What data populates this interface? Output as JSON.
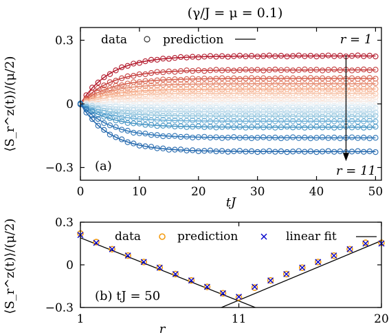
{
  "figure": {
    "title": "(γ/J = μ = 0.1)"
  },
  "chart_data": [
    {
      "type": "scatter",
      "panel_label": "(a)",
      "xlabel": "tJ",
      "ylabel": "⟨S_r^z(t)⟩/(μ/2)",
      "xlim": [
        0,
        51
      ],
      "ylim": [
        -0.36,
        0.36
      ],
      "xticks": [
        "0",
        "10",
        "20",
        "30",
        "40",
        "50"
      ],
      "xtick_values": [
        0,
        10,
        20,
        30,
        40,
        50
      ],
      "yticks": [
        "0.3",
        "0",
        "−0.3"
      ],
      "ytick_values": [
        0.3,
        0,
        -0.3
      ],
      "legend": {
        "data": "data",
        "prediction": "prediction",
        "placement": "top"
      },
      "annotation_top": "r = 1",
      "annotation_bottom": "r = 11",
      "arrow_x": 45,
      "arrow_y": [
        0.23,
        -0.27
      ],
      "time_constant": 5,
      "x_markers": [
        0,
        1,
        2,
        3,
        4,
        5,
        6,
        7,
        8,
        9,
        10,
        11,
        12,
        13,
        14,
        15,
        16,
        17,
        18,
        19,
        20,
        21,
        22,
        23,
        24,
        25,
        26,
        27,
        28,
        29,
        30,
        31,
        32,
        33,
        34,
        35,
        36,
        37,
        38,
        39,
        40,
        41,
        42,
        43,
        44,
        45,
        46,
        47,
        48,
        49,
        50
      ],
      "series": [
        {
          "final": 0.226,
          "color": "#b2182b"
        },
        {
          "final": 0.16,
          "color": "#c43c3c"
        },
        {
          "final": 0.12,
          "color": "#d6604d"
        },
        {
          "final": 0.095,
          "color": "#e58a6f"
        },
        {
          "final": 0.07,
          "color": "#f4a582"
        },
        {
          "final": 0.05,
          "color": "#f7c3a8"
        },
        {
          "final": 0.03,
          "color": "#fbdccc"
        },
        {
          "final": 0.012,
          "color": "#f5ebe6"
        },
        {
          "final": -0.005,
          "color": "#e8f1f7"
        },
        {
          "final": -0.02,
          "color": "#d1e5f0"
        },
        {
          "final": -0.038,
          "color": "#b8d8ea"
        },
        {
          "final": -0.058,
          "color": "#92c5de"
        },
        {
          "final": -0.082,
          "color": "#6aaed6"
        },
        {
          "final": -0.11,
          "color": "#4393c3"
        },
        {
          "final": -0.16,
          "color": "#2e75b6"
        },
        {
          "final": -0.225,
          "color": "#2166ac"
        }
      ]
    },
    {
      "type": "scatter",
      "panel_label": "(b) tJ = 50",
      "xlabel": "r",
      "ylabel": "⟨S_r^z(t)⟩/(μ/2)",
      "xlim": [
        1,
        20
      ],
      "ylim": [
        -0.3,
        0.3
      ],
      "xticks": [
        "1",
        "11",
        "20"
      ],
      "xtick_values": [
        1,
        11,
        20
      ],
      "yticks": [
        "0.3",
        "0",
        "−0.3"
      ],
      "ytick_values": [
        0.3,
        0,
        -0.3
      ],
      "legend": {
        "data": "data",
        "prediction": "prediction",
        "fit": "linear fit",
        "placement": "top"
      },
      "r": [
        1,
        2,
        3,
        4,
        5,
        6,
        7,
        8,
        9,
        10,
        11,
        12,
        13,
        14,
        15,
        16,
        17,
        18,
        19,
        20
      ],
      "data": [
        0.22,
        0.16,
        0.11,
        0.065,
        0.02,
        -0.02,
        -0.065,
        -0.11,
        -0.155,
        -0.2,
        -0.23,
        -0.16,
        -0.11,
        -0.065,
        -0.02,
        0.02,
        0.065,
        0.11,
        0.155,
        0.155
      ],
      "prediction": [
        0.21,
        0.155,
        0.11,
        0.065,
        0.02,
        -0.02,
        -0.065,
        -0.11,
        -0.155,
        -0.2,
        -0.225,
        -0.155,
        -0.11,
        -0.065,
        -0.02,
        0.02,
        0.065,
        0.11,
        0.15,
        0.15
      ],
      "fit_lines": [
        {
          "x": [
            1,
            13.5
          ],
          "y": [
            0.19,
            -0.365
          ]
        },
        {
          "x": [
            8.5,
            20
          ],
          "y": [
            -0.365,
            0.17
          ]
        }
      ],
      "marker_colors": {
        "data": "#f39c12",
        "prediction": "#0000cc"
      }
    }
  ]
}
